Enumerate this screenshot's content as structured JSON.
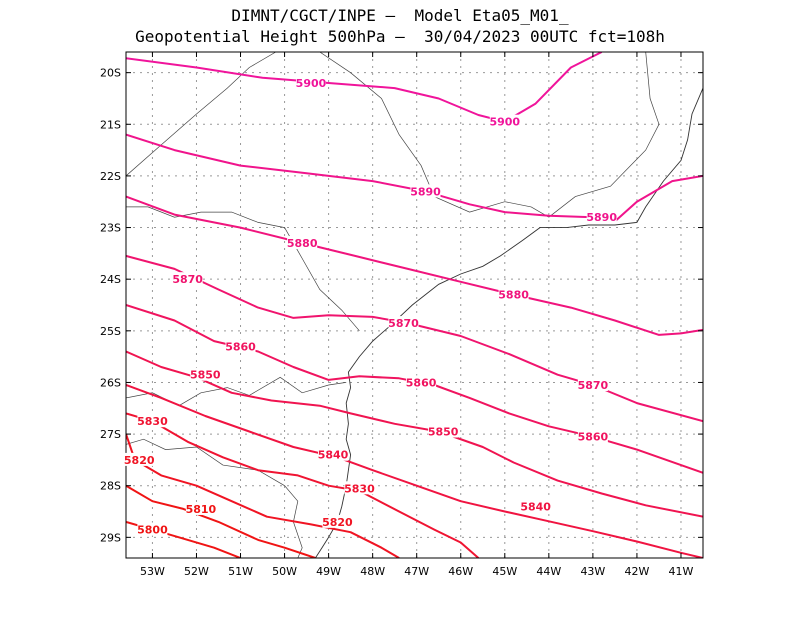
{
  "title": {
    "line1": "DIMNT/CGCT/INPE –  Model Eta05_M01_",
    "line2": "Geopotential Height 500hPa –  30/04/2023 00UTC fct=108h"
  },
  "chart_data": {
    "type": "contour",
    "variable": "Geopotential Height 500hPa",
    "lon_range": [
      -53.6,
      -40.5
    ],
    "lat_range": [
      -29.4,
      -19.6
    ],
    "grid": true,
    "x_ticks": [
      {
        "lon": -53,
        "label": "53W"
      },
      {
        "lon": -52,
        "label": "52W"
      },
      {
        "lon": -51,
        "label": "51W"
      },
      {
        "lon": -50,
        "label": "50W"
      },
      {
        "lon": -49,
        "label": "49W"
      },
      {
        "lon": -48,
        "label": "48W"
      },
      {
        "lon": -47,
        "label": "47W"
      },
      {
        "lon": -46,
        "label": "46W"
      },
      {
        "lon": -45,
        "label": "45W"
      },
      {
        "lon": -44,
        "label": "44W"
      },
      {
        "lon": -43,
        "label": "43W"
      },
      {
        "lon": -42,
        "label": "42W"
      },
      {
        "lon": -41,
        "label": "41W"
      }
    ],
    "y_ticks": [
      {
        "lat": -20,
        "label": "20S"
      },
      {
        "lat": -21,
        "label": "21S"
      },
      {
        "lat": -22,
        "label": "22S"
      },
      {
        "lat": -23,
        "label": "23S"
      },
      {
        "lat": -24,
        "label": "24S"
      },
      {
        "lat": -25,
        "label": "25S"
      },
      {
        "lat": -26,
        "label": "26S"
      },
      {
        "lat": -27,
        "label": "27S"
      },
      {
        "lat": -28,
        "label": "28S"
      },
      {
        "lat": -29,
        "label": "29S"
      }
    ],
    "contours": [
      {
        "level": 5900,
        "color": "#f0149b",
        "points": [
          [
            -53.6,
            -19.72
          ],
          [
            -52,
            -19.9
          ],
          [
            -50.5,
            -20.1
          ],
          [
            -49,
            -20.2
          ],
          [
            -47.5,
            -20.3
          ],
          [
            -46.5,
            -20.5
          ],
          [
            -45.6,
            -20.82
          ],
          [
            -45,
            -20.95
          ],
          [
            -44.3,
            -20.6
          ],
          [
            -43.5,
            -19.9
          ],
          [
            -42.8,
            -19.6
          ]
        ],
        "labels": [
          {
            "text": "5900",
            "lon": -49.4,
            "lat": -20.2
          },
          {
            "text": "5900",
            "lon": -45.0,
            "lat": -20.95
          }
        ]
      },
      {
        "level": 5890,
        "color": "#f0148c",
        "points": [
          [
            -53.6,
            -21.2
          ],
          [
            -52.5,
            -21.5
          ],
          [
            -51,
            -21.8
          ],
          [
            -49.5,
            -21.95
          ],
          [
            -48,
            -22.1
          ],
          [
            -46.8,
            -22.3
          ],
          [
            -45.8,
            -22.55
          ],
          [
            -45,
            -22.7
          ],
          [
            -44,
            -22.77
          ],
          [
            -43,
            -22.8
          ],
          [
            -42.5,
            -22.88
          ],
          [
            -42,
            -22.5
          ],
          [
            -41.2,
            -22.1
          ],
          [
            -40.5,
            -22.0
          ]
        ],
        "labels": [
          {
            "text": "5890",
            "lon": -46.8,
            "lat": -22.3
          },
          {
            "text": "5890",
            "lon": -42.8,
            "lat": -22.8
          }
        ]
      },
      {
        "level": 5880,
        "color": "#f0147d",
        "points": [
          [
            -53.6,
            -22.4
          ],
          [
            -52.5,
            -22.75
          ],
          [
            -51,
            -23.0
          ],
          [
            -49.6,
            -23.3
          ],
          [
            -48.4,
            -23.55
          ],
          [
            -47.2,
            -23.8
          ],
          [
            -46,
            -24.05
          ],
          [
            -44.9,
            -24.28
          ],
          [
            -43.5,
            -24.55
          ],
          [
            -42.5,
            -24.8
          ],
          [
            -41.5,
            -25.08
          ],
          [
            -41,
            -25.05
          ],
          [
            -40.5,
            -24.98
          ]
        ],
        "labels": [
          {
            "text": "5880",
            "lon": -49.6,
            "lat": -23.3
          },
          {
            "text": "5880",
            "lon": -44.8,
            "lat": -24.3
          }
        ]
      },
      {
        "level": 5870,
        "color": "#f0146e",
        "points": [
          [
            -53.6,
            -23.55
          ],
          [
            -52.5,
            -23.8
          ],
          [
            -51.5,
            -24.2
          ],
          [
            -50.6,
            -24.55
          ],
          [
            -49.8,
            -24.75
          ],
          [
            -49,
            -24.7
          ],
          [
            -48,
            -24.73
          ],
          [
            -47.2,
            -24.85
          ],
          [
            -46,
            -25.1
          ],
          [
            -44.9,
            -25.45
          ],
          [
            -43.8,
            -25.85
          ],
          [
            -43,
            -26.05
          ],
          [
            -42,
            -26.4
          ],
          [
            -40.5,
            -26.75
          ]
        ],
        "labels": [
          {
            "text": "5870",
            "lon": -52.2,
            "lat": -24.0
          },
          {
            "text": "5870",
            "lon": -47.3,
            "lat": -24.85
          },
          {
            "text": "5870",
            "lon": -43.0,
            "lat": -26.05
          }
        ]
      },
      {
        "level": 5860,
        "color": "#f0145f",
        "points": [
          [
            -53.6,
            -24.5
          ],
          [
            -52.5,
            -24.8
          ],
          [
            -51.6,
            -25.2
          ],
          [
            -50.6,
            -25.4
          ],
          [
            -49.8,
            -25.7
          ],
          [
            -49,
            -25.95
          ],
          [
            -48.3,
            -25.88
          ],
          [
            -47.4,
            -25.92
          ],
          [
            -46.6,
            -26.05
          ],
          [
            -45.8,
            -26.3
          ],
          [
            -44.9,
            -26.6
          ],
          [
            -44,
            -26.85
          ],
          [
            -43,
            -27.05
          ],
          [
            -42,
            -27.3
          ],
          [
            -40.5,
            -27.75
          ]
        ],
        "labels": [
          {
            "text": "5860",
            "lon": -51.0,
            "lat": -25.3
          },
          {
            "text": "5860",
            "lon": -46.9,
            "lat": -26.0
          },
          {
            "text": "5860",
            "lon": -43.0,
            "lat": -27.05
          }
        ]
      },
      {
        "level": 5850,
        "color": "#f01450",
        "points": [
          [
            -53.6,
            -25.4
          ],
          [
            -52.8,
            -25.7
          ],
          [
            -52,
            -25.9
          ],
          [
            -51.2,
            -26.2
          ],
          [
            -50.3,
            -26.35
          ],
          [
            -49.2,
            -26.45
          ],
          [
            -48.5,
            -26.6
          ],
          [
            -47.5,
            -26.8
          ],
          [
            -46.5,
            -26.95
          ],
          [
            -45.5,
            -27.25
          ],
          [
            -44.8,
            -27.55
          ],
          [
            -43.8,
            -27.9
          ],
          [
            -42.8,
            -28.15
          ],
          [
            -41.8,
            -28.38
          ],
          [
            -40.5,
            -28.6
          ]
        ],
        "labels": [
          {
            "text": "5850",
            "lon": -51.8,
            "lat": -25.85
          },
          {
            "text": "5850",
            "lon": -46.4,
            "lat": -26.95
          }
        ]
      },
      {
        "level": 5840,
        "color": "#f01441",
        "points": [
          [
            -53.6,
            -26.05
          ],
          [
            -52.8,
            -26.3
          ],
          [
            -51.8,
            -26.65
          ],
          [
            -50.8,
            -26.95
          ],
          [
            -49.8,
            -27.25
          ],
          [
            -48.8,
            -27.45
          ],
          [
            -48,
            -27.7
          ],
          [
            -47,
            -28.0
          ],
          [
            -46,
            -28.3
          ],
          [
            -45,
            -28.5
          ],
          [
            -44.2,
            -28.65
          ],
          [
            -43,
            -28.88
          ],
          [
            -42,
            -29.08
          ],
          [
            -41,
            -29.3
          ],
          [
            -40.5,
            -29.4
          ]
        ],
        "labels": [
          {
            "text": "5840",
            "lon": -48.9,
            "lat": -27.4
          },
          {
            "text": "5840",
            "lon": -44.3,
            "lat": -28.4
          }
        ]
      },
      {
        "level": 5830,
        "color": "#f01432",
        "points": [
          [
            -53.6,
            -26.6
          ],
          [
            -53,
            -26.75
          ],
          [
            -52.2,
            -27.15
          ],
          [
            -51.4,
            -27.45
          ],
          [
            -50.6,
            -27.7
          ],
          [
            -49.7,
            -27.8
          ],
          [
            -49,
            -28.0
          ],
          [
            -48.3,
            -28.1
          ],
          [
            -47.4,
            -28.5
          ],
          [
            -46.6,
            -28.85
          ],
          [
            -46,
            -29.1
          ],
          [
            -45.6,
            -29.4
          ]
        ],
        "labels": [
          {
            "text": "5830",
            "lon": -53.0,
            "lat": -26.75
          },
          {
            "text": "5830",
            "lon": -48.3,
            "lat": -28.05
          }
        ]
      },
      {
        "level": 5820,
        "color": "#f01423",
        "points": [
          [
            -53.6,
            -27.0
          ],
          [
            -53.5,
            -27.25
          ],
          [
            -53.4,
            -27.5
          ],
          [
            -52.8,
            -27.8
          ],
          [
            -52,
            -28.0
          ],
          [
            -51.2,
            -28.3
          ],
          [
            -50.4,
            -28.6
          ],
          [
            -49.4,
            -28.75
          ],
          [
            -48.5,
            -28.9
          ],
          [
            -47.8,
            -29.2
          ],
          [
            -47.4,
            -29.4
          ]
        ],
        "labels": [
          {
            "text": "5820",
            "lon": -53.3,
            "lat": -27.5
          },
          {
            "text": "5820",
            "lon": -48.8,
            "lat": -28.7
          }
        ]
      },
      {
        "level": 5810,
        "color": "#f01414",
        "points": [
          [
            -53.6,
            -28.0
          ],
          [
            -53,
            -28.3
          ],
          [
            -52.3,
            -28.45
          ],
          [
            -51.5,
            -28.7
          ],
          [
            -50.6,
            -29.05
          ],
          [
            -50,
            -29.2
          ],
          [
            -49.3,
            -29.4
          ]
        ],
        "labels": [
          {
            "text": "5810",
            "lon": -51.9,
            "lat": -28.45
          }
        ]
      },
      {
        "level": 5800,
        "color": "#f01414",
        "points": [
          [
            -53.6,
            -28.7
          ],
          [
            -53,
            -28.85
          ],
          [
            -52.4,
            -29.0
          ],
          [
            -51.6,
            -29.2
          ],
          [
            -51,
            -29.4
          ]
        ],
        "labels": [
          {
            "text": "5800",
            "lon": -53.0,
            "lat": -28.85
          }
        ]
      }
    ],
    "coastline": [
      [
        -49.3,
        -29.4
      ],
      [
        -49.15,
        -29.2
      ],
      [
        -49.0,
        -29.0
      ],
      [
        -48.8,
        -28.7
      ],
      [
        -48.7,
        -28.4
      ],
      [
        -48.6,
        -28.0
      ],
      [
        -48.55,
        -27.7
      ],
      [
        -48.5,
        -27.4
      ],
      [
        -48.6,
        -27.1
      ],
      [
        -48.55,
        -26.8
      ],
      [
        -48.6,
        -26.4
      ],
      [
        -48.5,
        -26.1
      ],
      [
        -48.55,
        -25.8
      ],
      [
        -48.3,
        -25.5
      ],
      [
        -48.0,
        -25.2
      ],
      [
        -47.6,
        -24.9
      ],
      [
        -47.1,
        -24.5
      ],
      [
        -46.5,
        -24.1
      ],
      [
        -46.0,
        -23.9
      ],
      [
        -45.5,
        -23.75
      ],
      [
        -45.1,
        -23.55
      ],
      [
        -44.6,
        -23.25
      ],
      [
        -44.2,
        -23.0
      ],
      [
        -43.6,
        -23.0
      ],
      [
        -43.1,
        -22.95
      ],
      [
        -42.5,
        -22.95
      ],
      [
        -42.0,
        -22.9
      ],
      [
        -41.8,
        -22.6
      ],
      [
        -41.4,
        -22.1
      ],
      [
        -41.0,
        -21.7
      ],
      [
        -40.85,
        -21.3
      ],
      [
        -40.75,
        -20.8
      ],
      [
        -40.5,
        -20.3
      ]
    ],
    "borders": [
      [
        [
          -53.6,
          -27.2
        ],
        [
          -53.2,
          -27.1
        ],
        [
          -52.7,
          -27.3
        ],
        [
          -52.0,
          -27.25
        ],
        [
          -51.4,
          -27.6
        ],
        [
          -50.6,
          -27.7
        ],
        [
          -50.0,
          -28.0
        ],
        [
          -49.7,
          -28.3
        ],
        [
          -49.8,
          -28.7
        ],
        [
          -49.6,
          -29.2
        ],
        [
          -49.7,
          -29.4
        ]
      ],
      [
        [
          -53.6,
          -26.3
        ],
        [
          -53.0,
          -26.2
        ],
        [
          -52.4,
          -26.45
        ],
        [
          -51.9,
          -26.2
        ],
        [
          -51.3,
          -26.1
        ],
        [
          -50.8,
          -26.25
        ],
        [
          -50.1,
          -25.9
        ],
        [
          -49.6,
          -26.2
        ],
        [
          -49.0,
          -26.05
        ],
        [
          -48.6,
          -26.0
        ]
      ],
      [
        [
          -53.6,
          -22.6
        ],
        [
          -53.1,
          -22.6
        ],
        [
          -52.5,
          -22.8
        ],
        [
          -51.9,
          -22.7
        ],
        [
          -51.2,
          -22.7
        ],
        [
          -50.6,
          -22.9
        ],
        [
          -50.0,
          -23.0
        ],
        [
          -49.6,
          -23.6
        ],
        [
          -49.2,
          -24.2
        ],
        [
          -48.7,
          -24.6
        ],
        [
          -48.3,
          -25.0
        ]
      ],
      [
        [
          -53.6,
          -22.0
        ],
        [
          -52.8,
          -21.4
        ],
        [
          -52.0,
          -20.8
        ],
        [
          -51.3,
          -20.3
        ],
        [
          -50.8,
          -19.9
        ],
        [
          -50.2,
          -19.6
        ]
      ],
      [
        [
          -49.2,
          -19.6
        ],
        [
          -48.5,
          -20.0
        ],
        [
          -47.8,
          -20.5
        ],
        [
          -47.4,
          -21.2
        ],
        [
          -46.9,
          -21.8
        ],
        [
          -46.6,
          -22.4
        ],
        [
          -45.8,
          -22.7
        ],
        [
          -45.0,
          -22.5
        ],
        [
          -44.4,
          -22.6
        ],
        [
          -44.0,
          -22.8
        ]
      ],
      [
        [
          -44.0,
          -22.8
        ],
        [
          -43.4,
          -22.4
        ],
        [
          -42.6,
          -22.2
        ],
        [
          -41.8,
          -21.5
        ],
        [
          -41.5,
          -21.0
        ],
        [
          -41.7,
          -20.5
        ],
        [
          -41.8,
          -19.6
        ]
      ]
    ]
  }
}
